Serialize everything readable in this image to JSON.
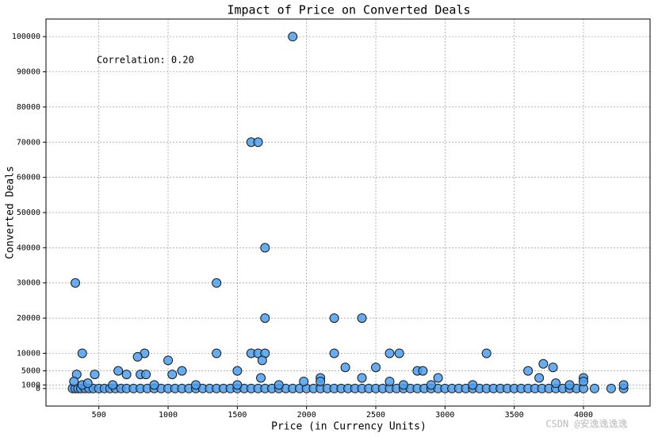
{
  "chart_data": {
    "type": "scatter",
    "title": "Impact of Price on Converted Deals",
    "x_label": "Price (in Currency Units)",
    "y_label": "Converted Deals",
    "annotation": "Correlation: 0.20",
    "watermark": "CSDN @安逸逸逸逸",
    "color": "#4b9ff0",
    "edge_color": "#1a1a1a",
    "grid": true,
    "xlim": [
      118,
      4481
    ],
    "ylim": [
      -5000,
      105000
    ],
    "xticks": [
      500,
      1000,
      1500,
      2000,
      2500,
      3000,
      3500,
      4000
    ],
    "yticks": [
      0,
      1000,
      5000,
      10000,
      20000,
      30000,
      40000,
      50000,
      60000,
      70000,
      80000,
      90000,
      100000
    ],
    "x": [
      1900,
      1600,
      1650,
      1700,
      330,
      1350,
      1700,
      2200,
      2400,
      1000,
      830,
      780,
      380,
      1350,
      1600,
      1650,
      1700,
      1680,
      2200,
      2600,
      2670,
      3300,
      3710,
      3780,
      2500,
      2280,
      1500,
      1100,
      640,
      3600,
      2800,
      2840,
      4000,
      3680,
      2950,
      2400,
      700,
      470,
      1030,
      800,
      840,
      340,
      1670,
      2100,
      310,
      330,
      350,
      370,
      400,
      430,
      460,
      500,
      540,
      580,
      620,
      660,
      700,
      750,
      800,
      850,
      900,
      950,
      1000,
      1050,
      1100,
      1150,
      1200,
      1250,
      1300,
      1350,
      1400,
      1450,
      1500,
      1550,
      1600,
      1650,
      1700,
      1750,
      1800,
      1850,
      1900,
      1950,
      2000,
      2050,
      2100,
      2150,
      2200,
      2250,
      2300,
      2350,
      2400,
      2450,
      2500,
      2550,
      2600,
      2650,
      2700,
      2750,
      2800,
      2850,
      2900,
      2950,
      3000,
      3050,
      3100,
      3150,
      3200,
      3250,
      3300,
      3350,
      3400,
      3450,
      3500,
      3550,
      3600,
      3650,
      3700,
      3750,
      3800,
      3850,
      3900,
      3950,
      4000,
      4080,
      4200,
      4290,
      320,
      380,
      420,
      600,
      900,
      1200,
      1500,
      1800,
      2100,
      2600,
      2900,
      3200,
      3800,
      3900,
      4000,
      4290,
      1980,
      2700
    ],
    "values": [
      100000,
      70000,
      70000,
      40000,
      30000,
      30000,
      20000,
      20000,
      20000,
      8000,
      10000,
      9000,
      10000,
      10000,
      10000,
      10000,
      10000,
      8000,
      10000,
      10000,
      10000,
      10000,
      7000,
      6000,
      6000,
      6000,
      5000,
      5000,
      5000,
      5000,
      5000,
      5000,
      3000,
      3000,
      3000,
      3000,
      4000,
      4000,
      4000,
      4000,
      4000,
      4000,
      3000,
      3000,
      0,
      0,
      0,
      0,
      0,
      0,
      0,
      0,
      0,
      0,
      0,
      0,
      0,
      0,
      0,
      0,
      0,
      0,
      0,
      0,
      0,
      0,
      0,
      0,
      0,
      0,
      0,
      0,
      0,
      0,
      0,
      0,
      0,
      0,
      0,
      0,
      0,
      0,
      0,
      0,
      0,
      0,
      0,
      0,
      0,
      0,
      0,
      0,
      0,
      0,
      0,
      0,
      0,
      0,
      0,
      0,
      0,
      0,
      0,
      0,
      0,
      0,
      0,
      0,
      0,
      0,
      0,
      0,
      0,
      0,
      0,
      0,
      0,
      0,
      0,
      0,
      0,
      0,
      0,
      0,
      0,
      0,
      2000,
      1000,
      1500,
      1000,
      1000,
      1000,
      1000,
      1000,
      2000,
      2000,
      1000,
      1000,
      1500,
      1000,
      2000,
      1000,
      2000,
      1000
    ]
  }
}
